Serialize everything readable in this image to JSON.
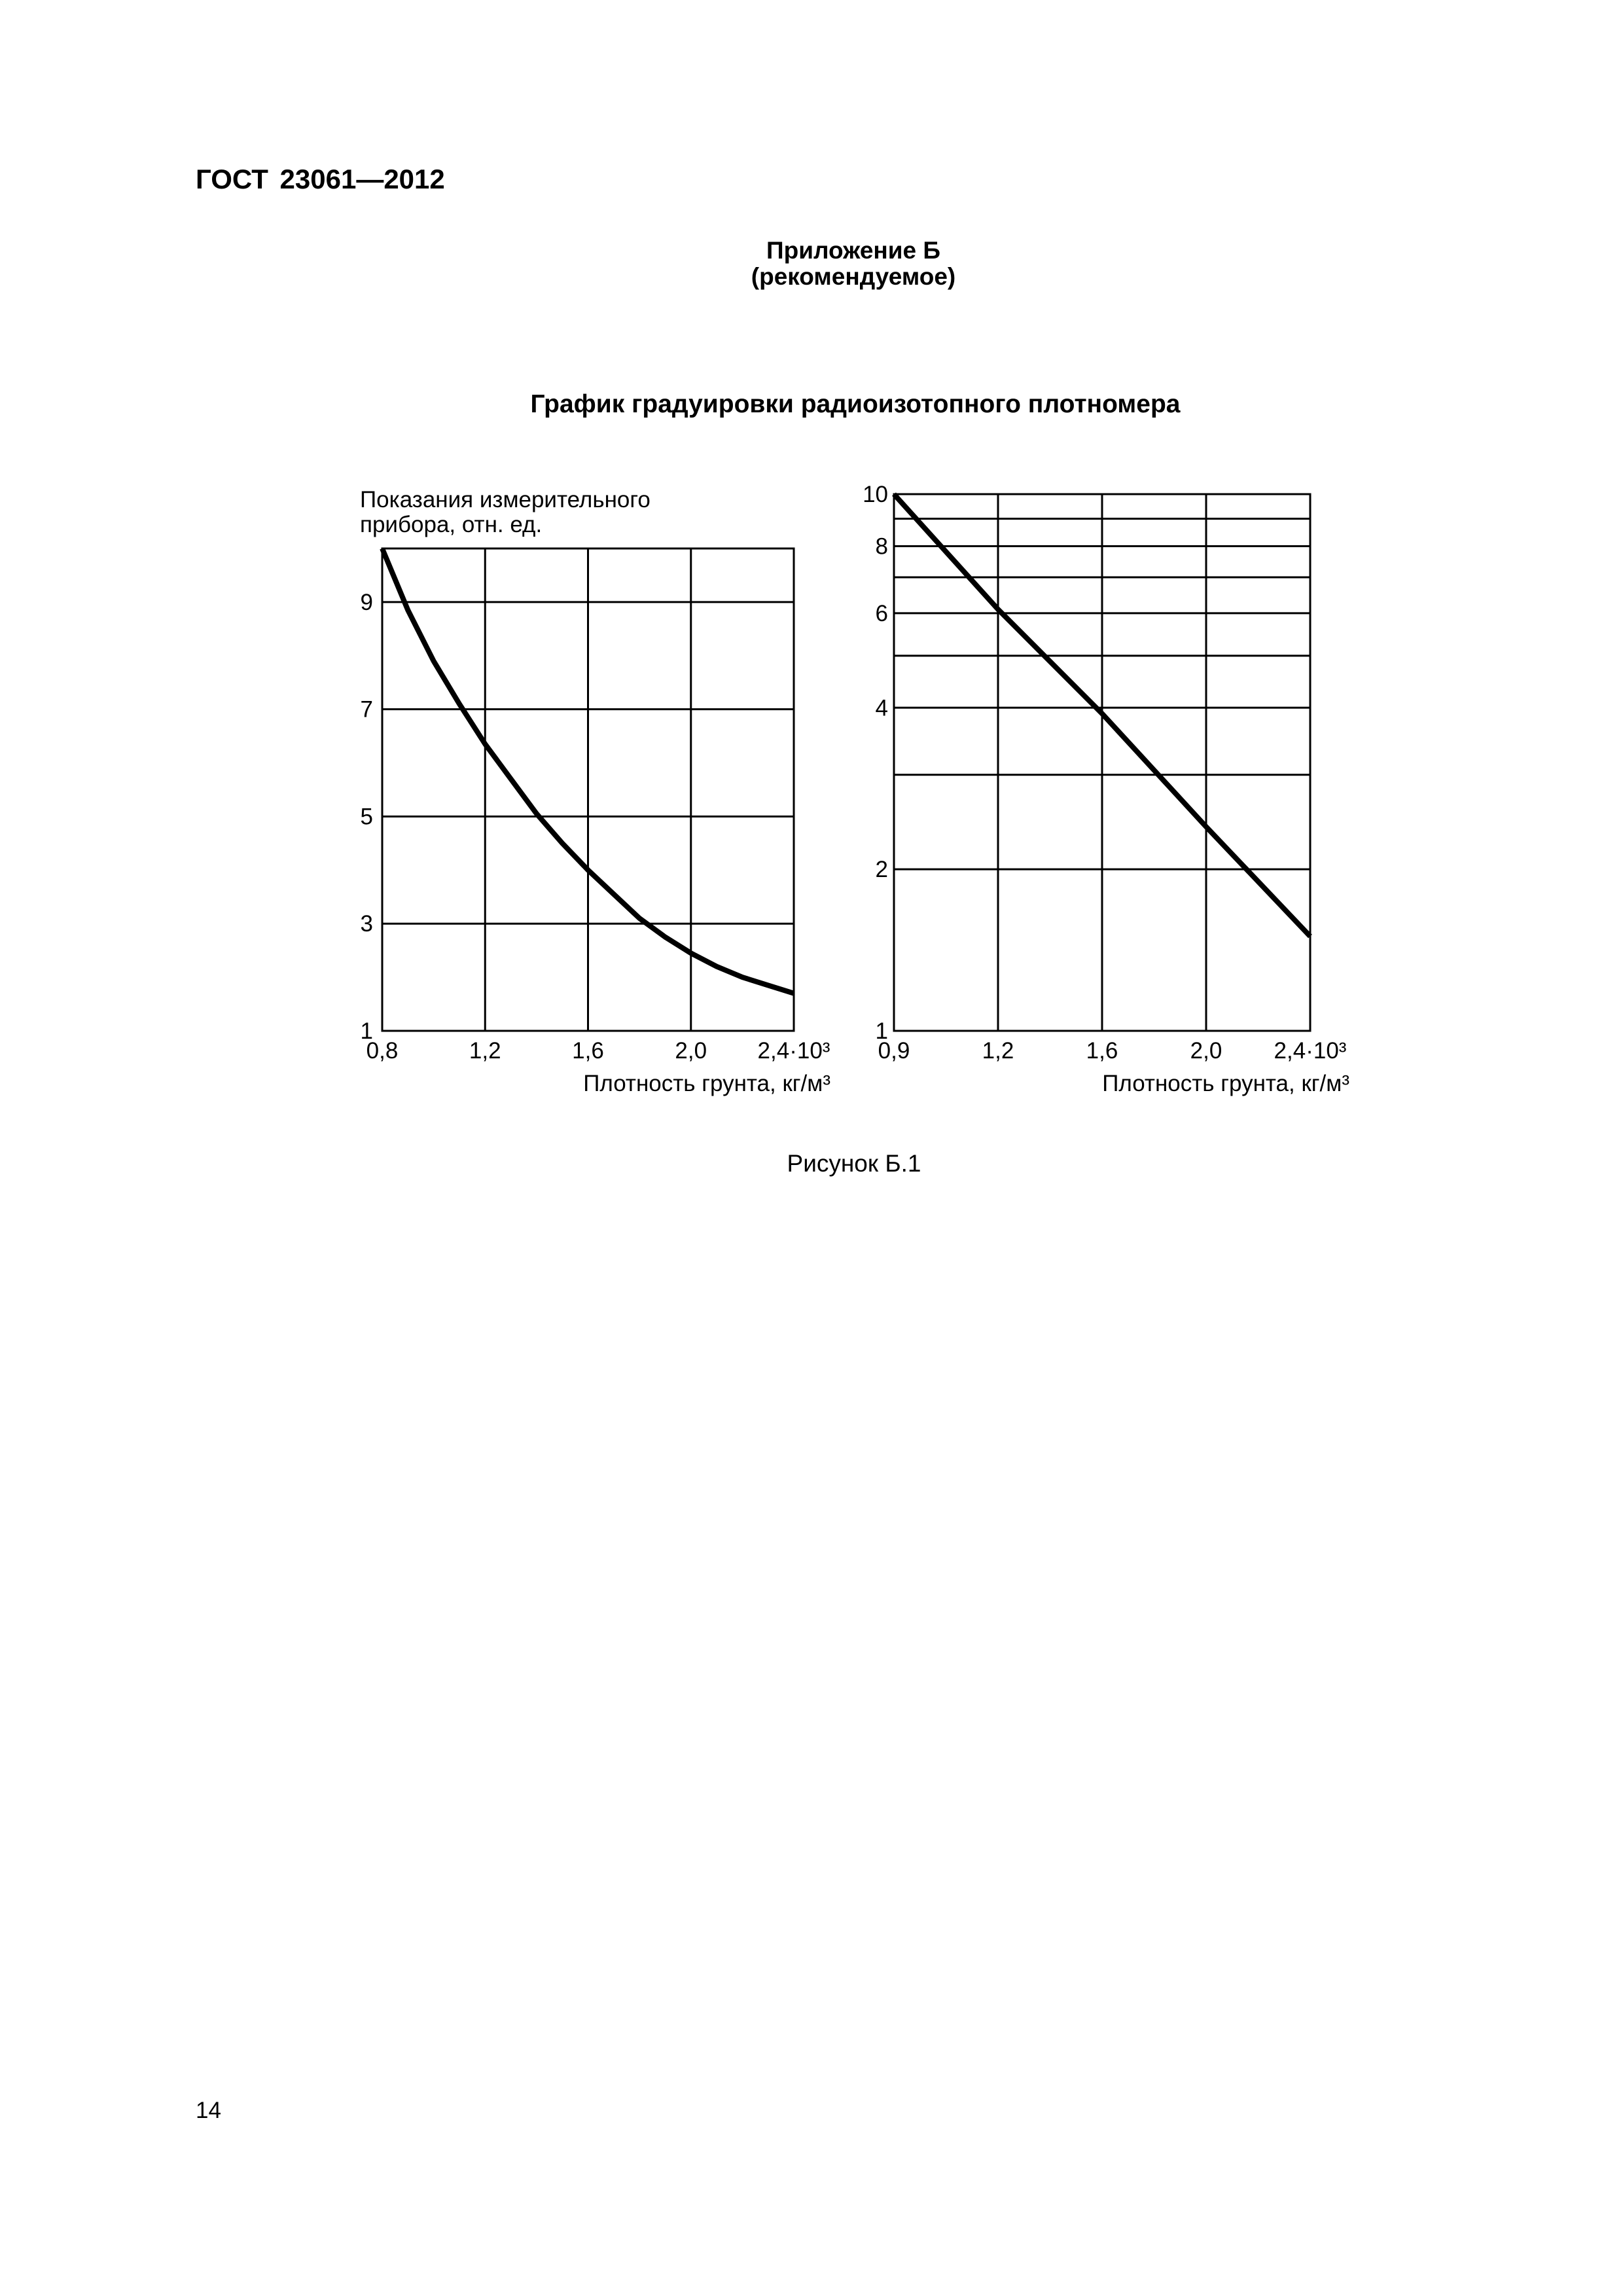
{
  "document": {
    "header": "ГОСТ 23061—2012",
    "appendix_title": "Приложение Б",
    "appendix_status": "(рекомендуемое)",
    "figure_title": "График градуировки радиоизотопного плотномера",
    "figure_caption": "Рисунок Б.1",
    "page_number": "14"
  },
  "chart_data": [
    {
      "type": "line",
      "ylabel": [
        "Показания измерительного",
        "прибора, отн. ед."
      ],
      "xlabel": "Плотность грунта, кг/м³",
      "xlim": [
        0.8,
        2.4
      ],
      "x_ticks": [
        0.8,
        1.2,
        1.6,
        2.0,
        2.4
      ],
      "x_tick_labels": [
        "0,8",
        "1,2",
        "1,6",
        "2,0",
        "2,4·10³"
      ],
      "y_scale": "linear",
      "ylim": [
        1,
        10
      ],
      "y_ticks": [
        1,
        3,
        5,
        7,
        9
      ],
      "y_tick_labels": [
        "1",
        "3",
        "5",
        "7",
        "9"
      ],
      "y_gridlines": [
        3,
        5,
        7,
        9
      ],
      "grid": true,
      "line_color": "#000000",
      "series": [
        {
          "x": [
            0.8,
            0.9,
            1.0,
            1.1,
            1.2,
            1.3,
            1.4,
            1.5,
            1.6,
            1.7,
            1.8,
            1.9,
            2.0,
            2.1,
            2.2,
            2.3,
            2.4
          ],
          "y": [
            10.0,
            8.85,
            7.9,
            7.1,
            6.35,
            5.7,
            5.05,
            4.5,
            4.0,
            3.55,
            3.1,
            2.75,
            2.45,
            2.2,
            2.0,
            1.85,
            1.7
          ]
        }
      ]
    },
    {
      "type": "line",
      "xlabel": "Плотность грунта, кг/м³",
      "xlim": [
        0.9,
        2.4
      ],
      "x_ticks": [
        0.9,
        1.2,
        1.6,
        2.0,
        2.4
      ],
      "x_tick_labels": [
        "0,9",
        "1,2",
        "1,6",
        "2,0",
        "2,4·10³"
      ],
      "y_scale": "log",
      "ylim": [
        1,
        10
      ],
      "y_ticks": [
        1,
        2,
        4,
        6,
        8,
        10
      ],
      "y_tick_labels": [
        "1",
        "2",
        "4",
        "6",
        "8",
        "10"
      ],
      "y_gridlines": [
        2,
        3,
        4,
        5,
        6,
        7,
        8,
        9
      ],
      "grid": true,
      "line_color": "#000000",
      "series": [
        {
          "x": [
            0.9,
            1.2,
            1.6,
            2.0,
            2.4
          ],
          "y": [
            10,
            6.1,
            3.9,
            2.4,
            1.5
          ]
        }
      ]
    }
  ]
}
